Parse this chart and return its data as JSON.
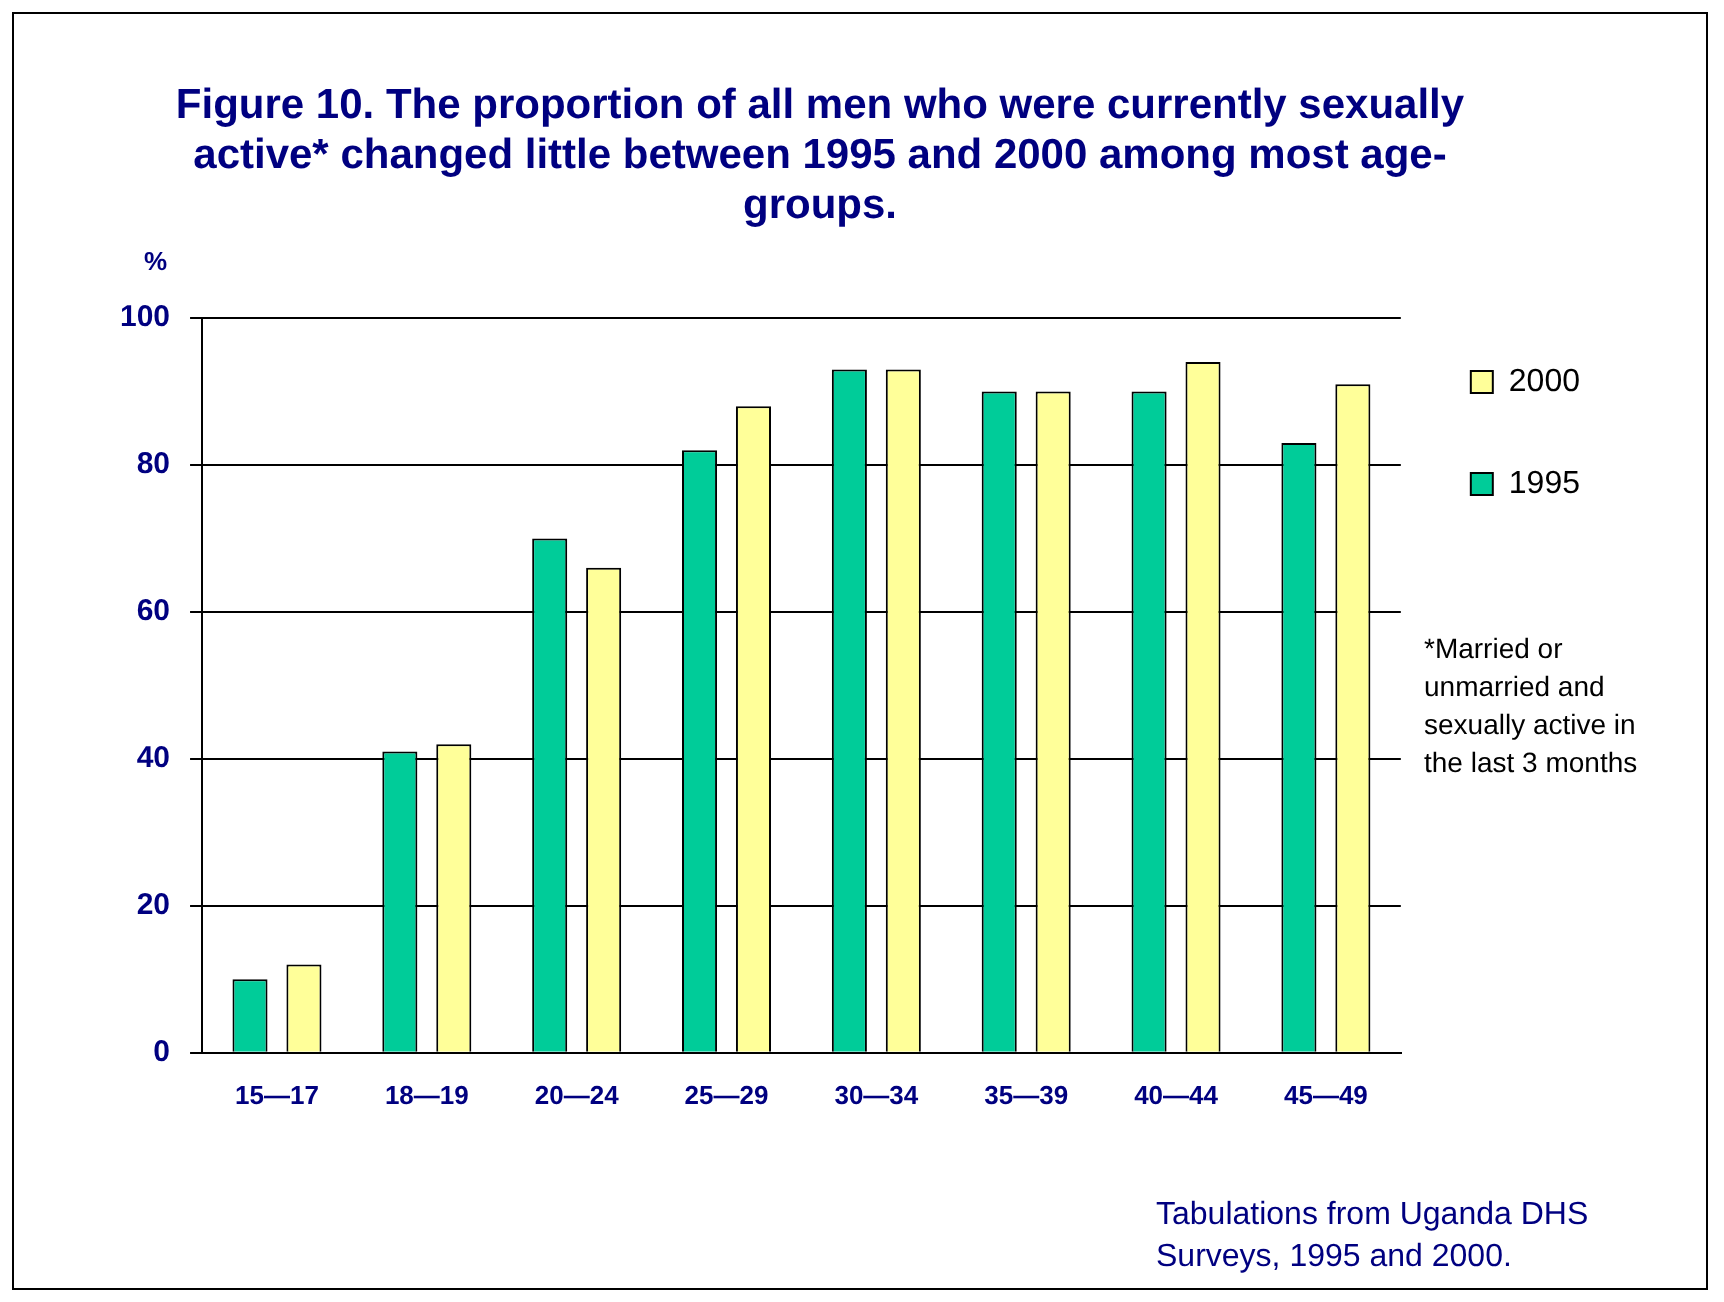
{
  "chart_data": {
    "type": "bar",
    "title": "Figure 10.  The proportion of all men who were currently sexually active* changed little between 1995 and 2000 among most age-groups.",
    "ylabel": "%",
    "categories": [
      "15—17",
      "18—19",
      "20—24",
      "25—29",
      "30—34",
      "35—39",
      "40—44",
      "45—49"
    ],
    "series": [
      {
        "name": "1995",
        "color": "#00cc99",
        "values": [
          10,
          41,
          70,
          82,
          93,
          90,
          90,
          83
        ]
      },
      {
        "name": "2000",
        "color": "#ffff99",
        "values": [
          12,
          42,
          66,
          88,
          93,
          90,
          94,
          91
        ]
      }
    ],
    "ylim": [
      0,
      100
    ],
    "yticks": [
      0,
      20,
      40,
      60,
      80,
      100
    ],
    "grid": "y",
    "legend": "top right",
    "annotations": [
      "*Married or unmarried and sexually active in the last 3 months",
      "Tabulations from Uganda DHS Surveys, 1995 and 2000."
    ]
  }
}
